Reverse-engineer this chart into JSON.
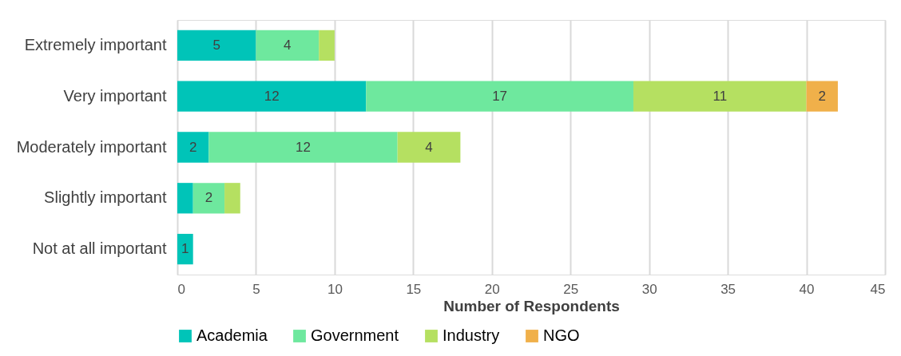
{
  "chart_data": {
    "type": "bar",
    "orientation": "horizontal",
    "stacked": true,
    "xlabel": "Number of Respondents",
    "categories": [
      "Extremely important",
      "Very important",
      "Moderately important",
      "Slightly important",
      "Not at all important"
    ],
    "series": [
      {
        "name": "Academia",
        "color": "#00c4b8",
        "values": [
          5,
          12,
          2,
          1,
          1
        ],
        "value_labels": [
          "5",
          "12",
          "2",
          null,
          "1"
        ]
      },
      {
        "name": "Government",
        "color": "#6ee89e",
        "values": [
          4,
          17,
          12,
          2,
          null
        ],
        "value_labels": [
          "4",
          "17",
          "12",
          "2",
          null
        ]
      },
      {
        "name": "Industry",
        "color": "#b5e061",
        "values": [
          1,
          11,
          4,
          1,
          null
        ],
        "value_labels": [
          null,
          "11",
          "4",
          null,
          null
        ]
      },
      {
        "name": "NGO",
        "color": "#f0b04a",
        "values": [
          null,
          2,
          null,
          null,
          null
        ],
        "value_labels": [
          null,
          "2",
          null,
          null,
          null
        ]
      }
    ],
    "xlim": [
      0,
      45
    ],
    "xticks": [
      0,
      5,
      10,
      15,
      20,
      25,
      30,
      35,
      40,
      45
    ],
    "grid": "x",
    "legend": "bottom"
  }
}
